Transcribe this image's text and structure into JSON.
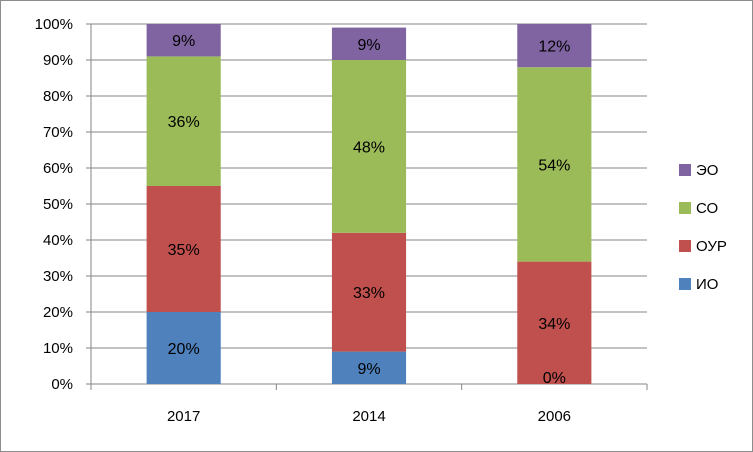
{
  "chart_data": {
    "type": "bar",
    "stacked": true,
    "categories": [
      "2017",
      "2014",
      "2006"
    ],
    "series": [
      {
        "name": "ИО",
        "color": "#4f81bd",
        "values": [
          20,
          9,
          0
        ],
        "labels": [
          "20%",
          "9%",
          "0%"
        ]
      },
      {
        "name": "ОУР",
        "color": "#c0504d",
        "values": [
          35,
          33,
          34
        ],
        "labels": [
          "35%",
          "33%",
          "34%"
        ]
      },
      {
        "name": "СО",
        "color": "#9bbb59",
        "values": [
          36,
          48,
          54
        ],
        "labels": [
          "36%",
          "48%",
          "54%"
        ]
      },
      {
        "name": "ЭО",
        "color": "#8064a2",
        "values": [
          9,
          9,
          12
        ],
        "labels": [
          "9%",
          "9%",
          "12%"
        ]
      }
    ],
    "ylim": [
      0,
      100
    ],
    "yticks": [
      "0%",
      "10%",
      "20%",
      "30%",
      "40%",
      "50%",
      "60%",
      "70%",
      "80%",
      "90%",
      "100%"
    ],
    "grid": true,
    "legend_position": "right",
    "title": "",
    "xlabel": "",
    "ylabel": ""
  }
}
